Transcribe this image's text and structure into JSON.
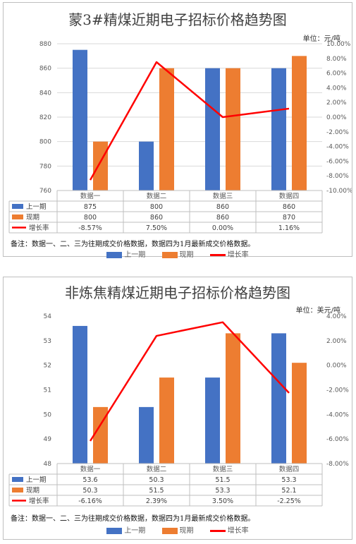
{
  "colors": {
    "prev": "#4472C4",
    "curr": "#ED7D31",
    "rate": "#FF0000",
    "grid": "#d9d9d9"
  },
  "charts": [
    {
      "title": "蒙3#精煤近期电子招标价格趋势图",
      "unit": "单位：元/吨",
      "note": "备注：数据一、二、三为往期成交价格数据，数据四为1月最新成交价格数据。",
      "legend": {
        "prev": "上一期",
        "curr": "现期",
        "rate": "增长率"
      },
      "row_labels": {
        "prev": "上一期",
        "curr": "现期",
        "rate": "增长率"
      },
      "rate_text": [
        "-8.57%",
        "7.50%",
        "0.00%",
        "1.16%"
      ]
    },
    {
      "title": "非炼焦精煤近期电子招标价格趋势图",
      "unit": "单位：美元/吨",
      "note": "备注：数据一、二、三为往期成交价格数据，数据四为1月最新成交价格数据。",
      "legend": {
        "prev": "上一期",
        "curr": "现期",
        "rate": "增长率"
      },
      "row_labels": {
        "prev": "上一期",
        "curr": "现期",
        "rate": "增长率"
      },
      "rate_text": [
        "-6.16%",
        "2.39%",
        "3.50%",
        "-2.25%"
      ]
    }
  ],
  "chart_data": [
    {
      "type": "bar",
      "title": "蒙3#精煤近期电子招标价格趋势图",
      "categories": [
        "数据一",
        "数据二",
        "数据三",
        "数据四"
      ],
      "series": [
        {
          "name": "上一期",
          "values": [
            875,
            800,
            860,
            860
          ]
        },
        {
          "name": "现期",
          "values": [
            800,
            860,
            860,
            870
          ]
        },
        {
          "name": "增长率",
          "type": "line",
          "axis": "right",
          "values": [
            -8.57,
            7.5,
            0.0,
            1.16
          ]
        }
      ],
      "ylim": [
        760,
        880
      ],
      "yticks": [
        760,
        780,
        800,
        820,
        840,
        860,
        880
      ],
      "y2lim": [
        -10,
        10
      ],
      "y2ticks": [
        "-10.00%",
        "-8.00%",
        "-6.00%",
        "-4.00%",
        "-2.00%",
        "0.00%",
        "2.00%",
        "4.00%",
        "6.00%",
        "8.00%",
        "10.00%"
      ],
      "grid": true,
      "legend_position": "bottom"
    },
    {
      "type": "bar",
      "title": "非炼焦精煤近期电子招标价格趋势图",
      "categories": [
        "数据一",
        "数据二",
        "数据三",
        "数据四"
      ],
      "series": [
        {
          "name": "上一期",
          "values": [
            53.6,
            50.3,
            51.5,
            53.3
          ]
        },
        {
          "name": "现期",
          "values": [
            50.3,
            51.5,
            53.3,
            52.1
          ]
        },
        {
          "name": "增长率",
          "type": "line",
          "axis": "right",
          "values": [
            -6.16,
            2.39,
            3.5,
            -2.25
          ]
        }
      ],
      "ylim": [
        48,
        54
      ],
      "yticks": [
        48,
        49,
        50,
        51,
        52,
        53,
        54
      ],
      "y2lim": [
        -8,
        4
      ],
      "y2ticks": [
        "-8.00%",
        "-6.00%",
        "-4.00%",
        "-2.00%",
        "0.00%",
        "2.00%",
        "4.00%"
      ],
      "grid": false,
      "legend_position": "bottom"
    }
  ]
}
